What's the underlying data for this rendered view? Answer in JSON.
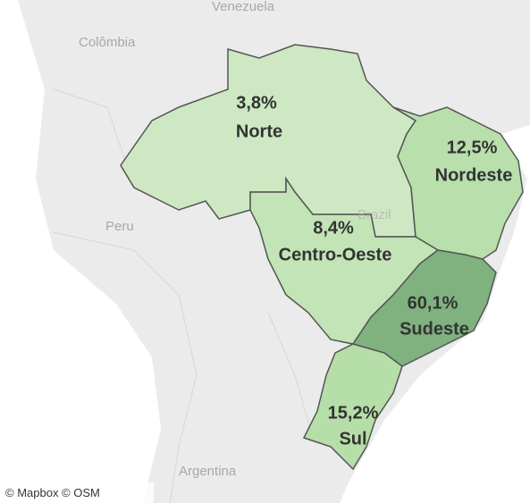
{
  "map": {
    "background_labels": [
      "Venezuela",
      "Colômbia",
      "Peru",
      "Brazil",
      "Argentina"
    ],
    "regions": [
      {
        "name": "Norte",
        "share": "3,8%"
      },
      {
        "name": "Nordeste",
        "share": "12,5%"
      },
      {
        "name": "Centro-Oeste",
        "share": "8,4%"
      },
      {
        "name": "Sudeste",
        "share": "60,1%"
      },
      {
        "name": "Sul",
        "share": "15,2%"
      }
    ],
    "attribution": "© Mapbox © OSM"
  }
}
